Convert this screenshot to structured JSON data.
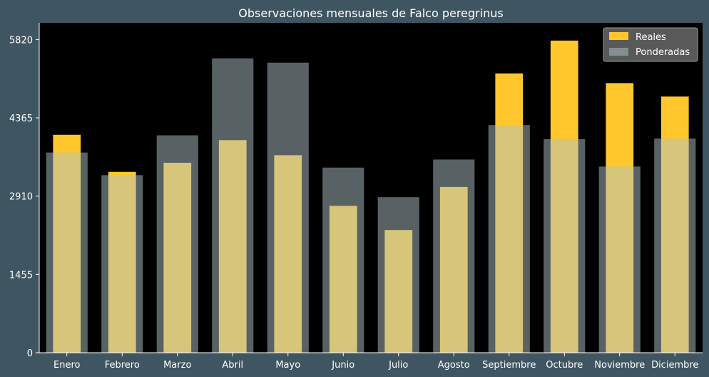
{
  "chart_data": {
    "type": "bar",
    "title": "Observaciones mensuales de Falco peregrinus",
    "xlabel": "",
    "ylabel": "",
    "categories": [
      "Enero",
      "Febrero",
      "Marzo",
      "Abril",
      "Mayo",
      "Junio",
      "Julio",
      "Agosto",
      "Septiembre",
      "Octubre",
      "Noviembre",
      "Diciembre"
    ],
    "series": [
      {
        "name": "Reales",
        "values": [
          4050,
          3360,
          3530,
          3950,
          3670,
          2730,
          2280,
          3080,
          5190,
          5800,
          5010,
          4760
        ]
      },
      {
        "name": "Ponderadas",
        "values": [
          3720,
          3300,
          4040,
          5470,
          5390,
          3440,
          2890,
          3590,
          4230,
          3970,
          3460,
          3980
        ]
      }
    ],
    "ylim": [
      0,
      6130
    ],
    "yticks": [
      0,
      1455,
      2910,
      4365,
      5820
    ],
    "ytick_labels": [
      "0",
      "1455",
      "2910",
      "4365",
      "5820"
    ],
    "legend_position": "top-right",
    "grid": false,
    "colors": {
      "Reales": "#ffc72c",
      "Ponderadas": "#b0c4c8",
      "figure_bg": "#3f5562",
      "plot_bg": "#000000",
      "text": "#ffffff"
    }
  }
}
